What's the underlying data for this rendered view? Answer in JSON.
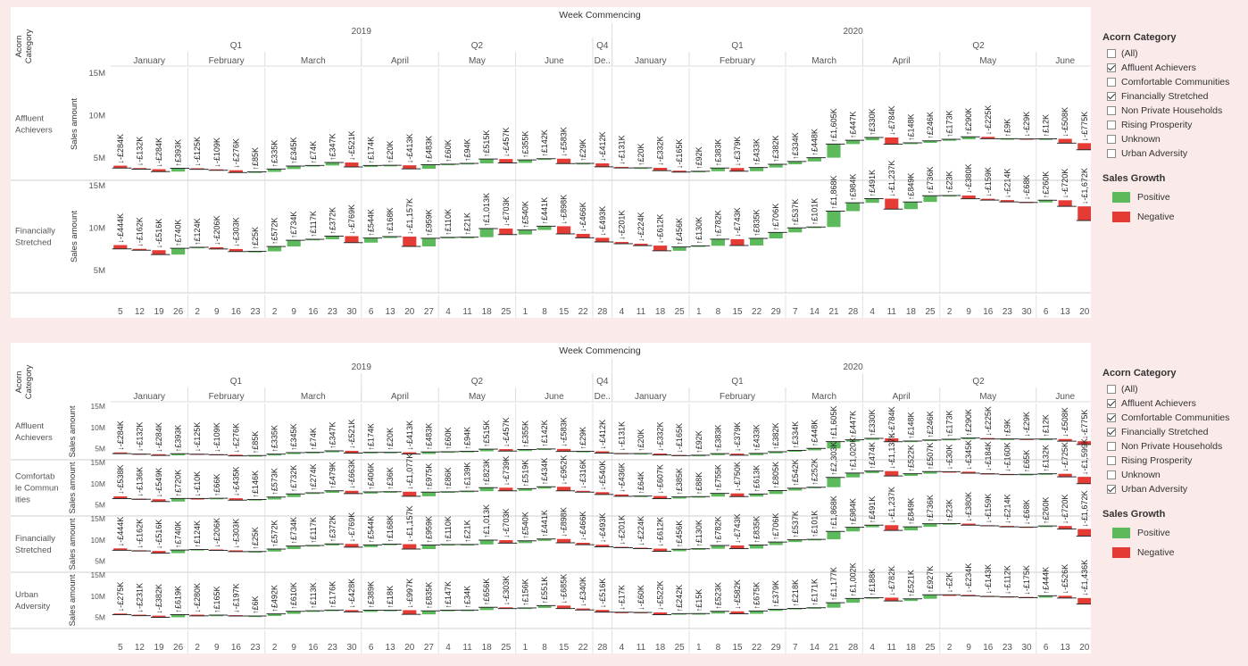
{
  "colors": {
    "positive": "#5cba5c",
    "negative": "#e43b35",
    "line": "#2b2b2b",
    "grid": "#e2e2e2",
    "text": "#555555"
  },
  "header": {
    "title": "Week Commencing",
    "row_header": "Acorn Category",
    "years": [
      "2019",
      "2020"
    ],
    "quarters": [
      "Q1",
      "Q2",
      "Q4",
      "Q1",
      "Q2"
    ],
    "months": [
      "January",
      "February",
      "March",
      "April",
      "May",
      "June",
      "De..",
      "January",
      "February",
      "March",
      "April",
      "May",
      "June"
    ],
    "days": [
      "5",
      "12",
      "19",
      "26",
      "2",
      "9",
      "16",
      "23",
      "2",
      "9",
      "16",
      "23",
      "30",
      "6",
      "13",
      "20",
      "27",
      "4",
      "11",
      "18",
      "25",
      "1",
      "8",
      "15",
      "22",
      "28",
      "4",
      "11",
      "18",
      "25",
      "1",
      "8",
      "15",
      "22",
      "29",
      "7",
      "14",
      "21",
      "28",
      "4",
      "11",
      "18",
      "25",
      "2",
      "9",
      "16",
      "23",
      "30",
      "6",
      "13",
      "20"
    ]
  },
  "axis_label": "Sales amount",
  "legend": {
    "acorn_title": "Acorn Category",
    "sales_title": "Sales Growth",
    "positive_label": "Positive",
    "negative_label": "Negative"
  },
  "chart_data": [
    {
      "type": "bar",
      "chart_kind": "waterfall",
      "x": [
        "2019-01-05",
        "2019-01-12",
        "2019-01-19",
        "2019-01-26",
        "2019-02-02",
        "2019-02-09",
        "2019-02-16",
        "2019-02-23",
        "2019-03-02",
        "2019-03-09",
        "2019-03-16",
        "2019-03-23",
        "2019-03-30",
        "2019-04-06",
        "2019-04-13",
        "2019-04-20",
        "2019-04-27",
        "2019-05-04",
        "2019-05-11",
        "2019-05-18",
        "2019-05-25",
        "2019-06-01",
        "2019-06-08",
        "2019-06-15",
        "2019-06-22",
        "2019-12-28",
        "2020-01-04",
        "2020-01-11",
        "2020-01-18",
        "2020-01-25",
        "2020-02-01",
        "2020-02-08",
        "2020-02-15",
        "2020-02-22",
        "2020-02-29",
        "2020-03-07",
        "2020-03-14",
        "2020-03-21",
        "2020-03-28",
        "2020-04-04",
        "2020-04-11",
        "2020-04-18",
        "2020-04-25",
        "2020-05-02",
        "2020-05-09",
        "2020-05-16",
        "2020-05-23",
        "2020-05-30",
        "2020-06-06",
        "2020-06-13",
        "2020-06-20"
      ],
      "ylim": [
        3000000,
        15000000
      ],
      "y_ticks": [
        "15M",
        "10M",
        "5M"
      ],
      "y_tick_values": [
        15000000,
        10000000,
        5000000
      ],
      "filter": [
        "(All)",
        "Affluent Achievers",
        "Comfortable Communities",
        "Financially Stretched",
        "Non Private Households",
        "Rising Prosperity",
        "Unknown",
        "Urban Adversity"
      ],
      "filter_checked": [
        false,
        true,
        false,
        true,
        false,
        false,
        false,
        false
      ],
      "series": [
        {
          "name": "Affluent Achievers",
          "row_label": "Affluent Achievers",
          "start": 4100000,
          "labels": [
            "↓-£284K",
            "↓-£132K",
            "↓-£284K",
            "↑£393K",
            "↓-£125K",
            "↓-£109K",
            "↓-£276K",
            "↑£85K",
            "↑£335K",
            "↑£345K",
            "↑£74K",
            "↑£347K",
            "↓-£521K",
            "↑£174K",
            "↑£20K",
            "↓-£413K",
            "↑£483K",
            "↑£60K",
            "↑£94K",
            "↑£515K",
            "↓-£457K",
            "↑£355K",
            "↑£142K",
            "↓-£583K",
            "↑£29K",
            "↓-£412K",
            "↓-£131K",
            "↑£20K",
            "↓-£332K",
            "↓-£165K",
            "↑£92K",
            "↑£383K",
            "↓-£379K",
            "↑£433K",
            "↑£382K",
            "↑£334K",
            "↑£448K",
            "↑£1,605K",
            "↑£447K",
            "↑£330K",
            "↓-£784K",
            "↑£148K",
            "↑£246K",
            "↑£173K",
            "↑£290K",
            "↓-£225K",
            "↑£9K",
            "↓-£29K",
            "↑£12K",
            "↓-£508K",
            "↓-£775K"
          ],
          "deltas": [
            -284,
            -132,
            -284,
            393,
            -125,
            -109,
            -276,
            85,
            335,
            345,
            74,
            347,
            -521,
            174,
            20,
            -413,
            483,
            60,
            94,
            515,
            -457,
            355,
            142,
            -583,
            29,
            -412,
            -131,
            20,
            -332,
            -165,
            92,
            383,
            -379,
            433,
            382,
            334,
            448,
            1605,
            447,
            330,
            -784,
            148,
            246,
            173,
            290,
            -225,
            9,
            -29,
            12,
            -508,
            -775
          ]
        },
        {
          "name": "Financially Stretched",
          "row_label": "Financially Stretched",
          "start": 8000000,
          "labels": [
            "↓-£444K",
            "↓-£162K",
            "↓-£516K",
            "↑£740K",
            "↑£124K",
            "↓-£206K",
            "↓-£303K",
            "↑£25K",
            "↑£572K",
            "↑£734K",
            "↑£117K",
            "↑£372K",
            "↓-£769K",
            "↑£544K",
            "↑£168K",
            "↓-£1,157K",
            "↑£959K",
            "↑£110K",
            "↑£21K",
            "↑£1,013K",
            "↓-£703K",
            "↑£540K",
            "↑£441K",
            "↓-£898K",
            "↓-£466K",
            "↓-£493K",
            "↓-£201K",
            "↓-£224K",
            "↓-£612K",
            "↑£456K",
            "↑£130K",
            "↑£782K",
            "↓-£743K",
            "↑£835K",
            "↑£706K",
            "↑£537K",
            "↑£101K",
            "↑£1,868K",
            "↑£984K",
            "↑£491K",
            "↓-£1,237K",
            "↑£849K",
            "↑£736K",
            "↑£23K",
            "↓-£380K",
            "↓-£159K",
            "↓-£214K",
            "↓-£68K",
            "↑£260K",
            "↓-£720K",
            "↓-£1,672K"
          ],
          "deltas": [
            -444,
            -162,
            -516,
            740,
            124,
            -206,
            -303,
            25,
            572,
            734,
            117,
            372,
            -769,
            544,
            168,
            -1157,
            959,
            110,
            21,
            1013,
            -703,
            540,
            441,
            -898,
            -466,
            -493,
            -201,
            -224,
            -612,
            456,
            130,
            782,
            -743,
            835,
            706,
            537,
            101,
            1868,
            984,
            491,
            -1237,
            849,
            736,
            23,
            -380,
            -159,
            -214,
            -68,
            260,
            -720,
            -1672
          ]
        }
      ]
    },
    {
      "type": "bar",
      "chart_kind": "waterfall",
      "x": [
        "2019-01-05",
        "2019-01-12",
        "2019-01-19",
        "2019-01-26",
        "2019-02-02",
        "2019-02-09",
        "2019-02-16",
        "2019-02-23",
        "2019-03-02",
        "2019-03-09",
        "2019-03-16",
        "2019-03-23",
        "2019-03-30",
        "2019-04-06",
        "2019-04-13",
        "2019-04-20",
        "2019-04-27",
        "2019-05-04",
        "2019-05-11",
        "2019-05-18",
        "2019-05-25",
        "2019-06-01",
        "2019-06-08",
        "2019-06-15",
        "2019-06-22",
        "2019-12-28",
        "2020-01-04",
        "2020-01-11",
        "2020-01-18",
        "2020-01-25",
        "2020-02-01",
        "2020-02-08",
        "2020-02-15",
        "2020-02-22",
        "2020-02-29",
        "2020-03-07",
        "2020-03-14",
        "2020-03-21",
        "2020-03-28",
        "2020-04-04",
        "2020-04-11",
        "2020-04-18",
        "2020-04-25",
        "2020-05-02",
        "2020-05-09",
        "2020-05-16",
        "2020-05-23",
        "2020-05-30",
        "2020-06-06",
        "2020-06-13",
        "2020-06-20"
      ],
      "ylim": [
        3000000,
        15000000
      ],
      "y_ticks": [
        "15M",
        "10M",
        "5M"
      ],
      "y_tick_values": [
        15000000,
        10000000,
        5000000
      ],
      "filter": [
        "(All)",
        "Affluent Achievers",
        "Comfortable Communities",
        "Financially Stretched",
        "Non Private Households",
        "Rising Prosperity",
        "Unknown",
        "Urban Adversity"
      ],
      "filter_checked": [
        false,
        true,
        true,
        true,
        false,
        false,
        false,
        true
      ],
      "series": [
        {
          "name": "Affluent Achievers",
          "row_label": "Affluent Achievers",
          "start": 4100000,
          "labels": [
            "↓-£284K",
            "↓-£132K",
            "↓-£284K",
            "↑£393K",
            "↓-£125K",
            "↓-£109K",
            "↓-£276K",
            "↑£85K",
            "↑£335K",
            "↑£345K",
            "↑£74K",
            "↑£347K",
            "↓-£521K",
            "↑£174K",
            "↑£20K",
            "↓-£413K",
            "↑£483K",
            "↑£60K",
            "↑£94K",
            "↑£515K",
            "↓-£457K",
            "↑£355K",
            "↑£142K",
            "↓-£583K",
            "↑£29K",
            "↓-£412K",
            "↓-£131K",
            "↑£20K",
            "↓-£332K",
            "↓-£165K",
            "↑£92K",
            "↑£383K",
            "↓-£379K",
            "↑£433K",
            "↑£382K",
            "↑£334K",
            "↑£448K",
            "↑£1,605K",
            "↑£447K",
            "↑£330K",
            "↓-£784K",
            "↑£148K",
            "↑£246K",
            "↑£173K",
            "↑£290K",
            "↓-£225K",
            "↑£9K",
            "↓-£29K",
            "↑£12K",
            "↓-£508K",
            "↓-£775K"
          ],
          "deltas": [
            -284,
            -132,
            -284,
            393,
            -125,
            -109,
            -276,
            85,
            335,
            345,
            74,
            347,
            -521,
            174,
            20,
            -413,
            483,
            60,
            94,
            515,
            -457,
            355,
            142,
            -583,
            29,
            -412,
            -131,
            20,
            -332,
            -165,
            92,
            383,
            -379,
            433,
            382,
            334,
            448,
            1605,
            447,
            330,
            -784,
            148,
            246,
            173,
            290,
            -225,
            9,
            -29,
            12,
            -508,
            -775
          ]
        },
        {
          "name": "Comfortable Communities",
          "row_label": "Comfortab le Commun ities",
          "start": 7000000,
          "labels": [
            "↓-£538K",
            "↓-£136K",
            "↓-£549K",
            "↑£720K",
            "↓-£10K",
            "↑£66K",
            "↓-£435K",
            "↑£146K",
            "↑£573K",
            "↑£732K",
            "↑£274K",
            "↑£479K",
            "↓-£663K",
            "↑£406K",
            "↑£36K",
            "↓-£1,077K",
            "↑£975K",
            "↑£86K",
            "↑£139K",
            "↑£823K",
            "↓-£739K",
            "↑£519K",
            "↑£434K",
            "↓-£952K",
            "↓-£316K",
            "↓-£540K",
            "↓-£436K",
            "↑£64K",
            "↓-£607K",
            "↑£385K",
            "↑£88K",
            "↑£755K",
            "↓-£750K",
            "↑£613K",
            "↑£805K",
            "↑£542K",
            "↑£252K",
            "↑£2,303K",
            "↑£1,020K",
            "↑£474K",
            "↓-£1,137K",
            "↑£522K",
            "↑£507K",
            "↓-£30K",
            "↓-£345K",
            "↓-£184K",
            "↓-£160K",
            "↑£65K",
            "↑£132K",
            "↓-£725K",
            "↓-£1,599K"
          ],
          "deltas": [
            -538,
            -136,
            -549,
            720,
            -10,
            66,
            -435,
            146,
            573,
            732,
            274,
            479,
            -663,
            406,
            36,
            -1077,
            975,
            86,
            139,
            823,
            -739,
            519,
            434,
            -952,
            -316,
            -540,
            -436,
            64,
            -607,
            385,
            88,
            755,
            -750,
            613,
            805,
            542,
            252,
            2303,
            1020,
            474,
            -1137,
            522,
            507,
            -30,
            -345,
            -184,
            -160,
            65,
            132,
            -725,
            -1599
          ]
        },
        {
          "name": "Financially Stretched",
          "row_label": "Financially Stretched",
          "start": 8000000,
          "labels": [
            "↓-£444K",
            "↓-£162K",
            "↓-£516K",
            "↑£740K",
            "↑£124K",
            "↓-£206K",
            "↓-£303K",
            "↑£25K",
            "↑£572K",
            "↑£734K",
            "↑£117K",
            "↑£372K",
            "↓-£769K",
            "↑£544K",
            "↑£168K",
            "↓-£1,157K",
            "↑£959K",
            "↑£110K",
            "↑£21K",
            "↑£1,013K",
            "↓-£703K",
            "↑£540K",
            "↑£441K",
            "↓-£898K",
            "↓-£466K",
            "↓-£493K",
            "↓-£201K",
            "↓-£224K",
            "↓-£612K",
            "↑£456K",
            "↑£130K",
            "↑£782K",
            "↓-£743K",
            "↑£835K",
            "↑£706K",
            "↑£537K",
            "↑£101K",
            "↑£1,868K",
            "↑£984K",
            "↑£491K",
            "↓-£1,237K",
            "↑£849K",
            "↑£736K",
            "↑£23K",
            "↓-£380K",
            "↓-£159K",
            "↓-£214K",
            "↓-£68K",
            "↑£260K",
            "↓-£720K",
            "↓-£1,672K"
          ],
          "deltas": [
            -444,
            -162,
            -516,
            740,
            124,
            -206,
            -303,
            25,
            572,
            734,
            117,
            372,
            -769,
            544,
            168,
            -1157,
            959,
            110,
            21,
            1013,
            -703,
            540,
            441,
            -898,
            -466,
            -493,
            -201,
            -224,
            -612,
            456,
            130,
            782,
            -743,
            835,
            706,
            537,
            101,
            1868,
            984,
            491,
            -1237,
            849,
            736,
            23,
            -380,
            -159,
            -214,
            -68,
            260,
            -720,
            -1672
          ]
        },
        {
          "name": "Urban Adversity",
          "row_label": "Urban Adversity",
          "start": 5900000,
          "labels": [
            "↓-£275K",
            "↓-£231K",
            "↓-£382K",
            "↑£619K",
            "↓-£280K",
            "↑£165K",
            "↓-£197K",
            "↑£6K",
            "↑£492K",
            "↑£610K",
            "↑£113K",
            "↑£176K",
            "↓-£428K",
            "↑£389K",
            "↑£18K",
            "↓-£997K",
            "↑£835K",
            "↑£147K",
            "↑£34K",
            "↑£656K",
            "↓-£303K",
            "↑£156K",
            "↑£551K",
            "↓-£685K",
            "↓-£340K",
            "↓-£516K",
            "↓-£17K",
            "↓-£60K",
            "↓-£522K",
            "↑£242K",
            "↑£15K",
            "↑£523K",
            "↓-£582K",
            "↑£675K",
            "↑£379K",
            "↑£218K",
            "↑£171K",
            "↑£1,177K",
            "↑£1,002K",
            "↑£188K",
            "↓-£782K",
            "↑£521K",
            "↑£927K",
            "↓-£2K",
            "↓-£234K",
            "↓-£143K",
            "↓-£112K",
            "↓-£175K",
            "↑£444K",
            "↓-£526K",
            "↓-£1,436K"
          ],
          "deltas": [
            -275,
            -231,
            -382,
            619,
            -280,
            165,
            -197,
            6,
            492,
            610,
            113,
            176,
            -428,
            389,
            18,
            -997,
            835,
            147,
            34,
            656,
            -303,
            156,
            551,
            -685,
            -340,
            -516,
            -17,
            -60,
            -522,
            242,
            15,
            523,
            -582,
            675,
            379,
            218,
            171,
            1177,
            1002,
            188,
            -782,
            521,
            927,
            -2,
            -234,
            -143,
            -112,
            -175,
            444,
            -526,
            -1436
          ]
        }
      ]
    }
  ]
}
